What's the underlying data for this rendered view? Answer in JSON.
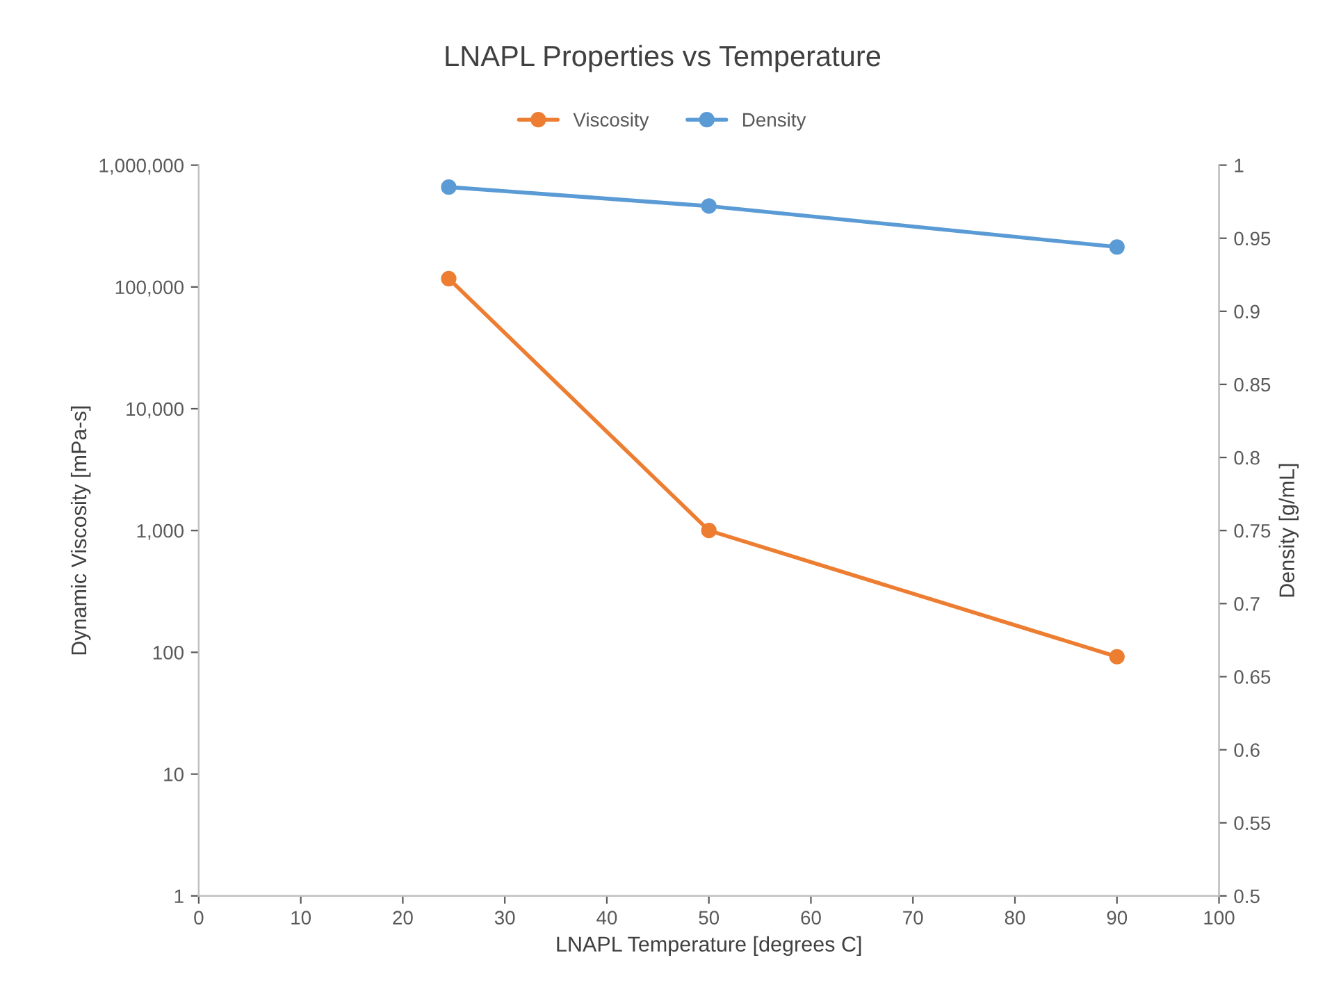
{
  "chart_data": {
    "type": "line",
    "title": "LNAPL Properties vs Temperature",
    "xlabel": "LNAPL Temperature [degrees C]",
    "ylabel": "Dynamic Viscosity [mPa-s]",
    "y2label": "Density [g/mL]",
    "x": [
      24.5,
      50,
      90
    ],
    "series": [
      {
        "name": "Viscosity",
        "color": "#ed7d31",
        "values": [
          117000,
          1000,
          92
        ]
      },
      {
        "name": "Density",
        "color": "#5b9bd5",
        "values": [
          0.985,
          0.972,
          0.944
        ],
        "axis": "y2"
      }
    ],
    "log": "y",
    "xlim": [
      0,
      100
    ],
    "xticks": [
      0,
      10,
      20,
      30,
      40,
      50,
      60,
      70,
      80,
      90,
      100
    ],
    "ylim": [
      1,
      1000000
    ],
    "yticks": [
      {
        "value": 1,
        "label": "1"
      },
      {
        "value": 10,
        "label": "10"
      },
      {
        "value": 100,
        "label": "100"
      },
      {
        "value": 1000,
        "label": "1,000"
      },
      {
        "value": 10000,
        "label": "10,000"
      },
      {
        "value": 100000,
        "label": "100,000"
      },
      {
        "value": 1000000,
        "label": "1,000,000"
      }
    ],
    "y2lim": [
      0.5,
      1
    ],
    "y2ticks": [
      0.5,
      0.55,
      0.6,
      0.65,
      0.7,
      0.75,
      0.8,
      0.85,
      0.9,
      0.95,
      1
    ],
    "grid": false,
    "legend": "top",
    "marker": "circle",
    "line_style": "solid"
  }
}
